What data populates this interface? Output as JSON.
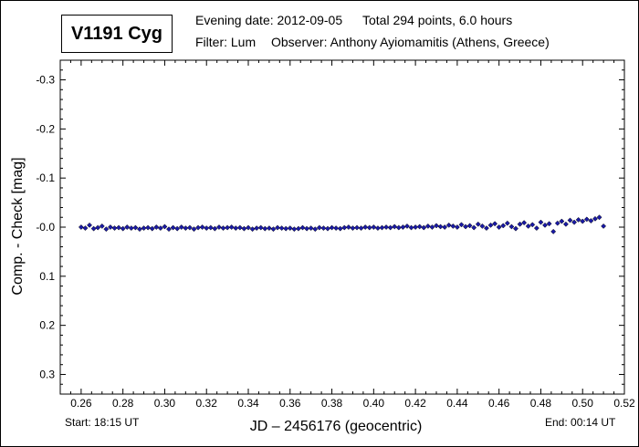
{
  "header": {
    "star_name": "V1191 Cyg",
    "evening_date": "Evening date: 2012-09-05",
    "total": "Total 294 points, 6.0 hours",
    "filter": "Filter: Lum",
    "observer": "Observer: Anthony Ayiomamitis (Athens, Greece)"
  },
  "footer": {
    "start": "Start: 18:15 UT",
    "end": "End: 00:14 UT"
  },
  "chart_data": {
    "type": "scatter",
    "title": "V1191 Cyg",
    "xlabel": "JD – 2456176  (geocentric)",
    "ylabel": "Comp. - Check [mag]",
    "xlim": [
      0.25,
      0.52
    ],
    "ylim": [
      -0.34,
      0.34
    ],
    "y_inverted": true,
    "x_ticks": [
      "0.26",
      "0.28",
      "0.30",
      "0.32",
      "0.34",
      "0.36",
      "0.38",
      "0.40",
      "0.42",
      "0.44",
      "0.46",
      "0.48",
      "0.50",
      "0.52"
    ],
    "y_ticks": [
      "-0.3",
      "-0.2",
      "-0.1",
      "-0.0",
      "0.1",
      "0.2",
      "0.3"
    ],
    "marker_color": "#1a1aa8",
    "series": [
      {
        "x": [
          0.26,
          0.262,
          0.264,
          0.266,
          0.268,
          0.27,
          0.272,
          0.274,
          0.276,
          0.278,
          0.28,
          0.282,
          0.284,
          0.286,
          0.288,
          0.29,
          0.292,
          0.294,
          0.296,
          0.298,
          0.3,
          0.302,
          0.304,
          0.306,
          0.308,
          0.31,
          0.312,
          0.314,
          0.316,
          0.318,
          0.32,
          0.322,
          0.324,
          0.326,
          0.328,
          0.33,
          0.332,
          0.334,
          0.336,
          0.338,
          0.34,
          0.342,
          0.344,
          0.346,
          0.348,
          0.35,
          0.352,
          0.354,
          0.356,
          0.358,
          0.36,
          0.362,
          0.364,
          0.366,
          0.368,
          0.37,
          0.372,
          0.374,
          0.376,
          0.378,
          0.38,
          0.382,
          0.384,
          0.386,
          0.388,
          0.39,
          0.392,
          0.394,
          0.396,
          0.398,
          0.4,
          0.402,
          0.404,
          0.406,
          0.408,
          0.41,
          0.412,
          0.414,
          0.416,
          0.418,
          0.42,
          0.422,
          0.424,
          0.426,
          0.428,
          0.43,
          0.432,
          0.434,
          0.436,
          0.438,
          0.44,
          0.442,
          0.444,
          0.446,
          0.448,
          0.45,
          0.452,
          0.454,
          0.456,
          0.458,
          0.46,
          0.462,
          0.464,
          0.466,
          0.468,
          0.47,
          0.472,
          0.474,
          0.476,
          0.478,
          0.48,
          0.482,
          0.484,
          0.486,
          0.488,
          0.49,
          0.492,
          0.494,
          0.496,
          0.498,
          0.5,
          0.502,
          0.504,
          0.506,
          0.508,
          0.51
        ],
        "y": [
          0.0,
          0.002,
          -0.004,
          0.003,
          0.001,
          -0.002,
          0.004,
          0.0,
          0.002,
          0.001,
          0.003,
          0.0,
          0.002,
          0.001,
          0.004,
          0.002,
          0.001,
          0.003,
          0.0,
          0.002,
          -0.001,
          0.004,
          0.001,
          0.003,
          0.0,
          0.002,
          0.001,
          0.004,
          0.001,
          0.0,
          0.002,
          0.001,
          0.003,
          0.0,
          0.002,
          0.001,
          0.0,
          0.002,
          0.001,
          0.003,
          0.001,
          0.004,
          0.002,
          0.001,
          0.003,
          0.002,
          0.004,
          0.001,
          0.002,
          0.003,
          0.002,
          0.004,
          0.003,
          0.001,
          0.003,
          0.002,
          0.004,
          0.001,
          0.002,
          0.003,
          0.001,
          0.002,
          0.003,
          0.001,
          0.0,
          0.002,
          0.001,
          0.002,
          0.0,
          0.001,
          0.0,
          0.002,
          0.001,
          0.0,
          0.001,
          -0.001,
          0.001,
          0.0,
          -0.002,
          0.001,
          0.0,
          -0.001,
          0.001,
          -0.002,
          0.0,
          -0.003,
          -0.001,
          0.0,
          -0.004,
          -0.002,
          0.0,
          -0.005,
          -0.001,
          -0.003,
          0.001,
          -0.006,
          -0.002,
          0.002,
          -0.004,
          -0.007,
          0.0,
          -0.003,
          -0.008,
          -0.001,
          0.003,
          -0.006,
          -0.009,
          -0.002,
          -0.005,
          0.002,
          -0.01,
          -0.004,
          -0.007,
          0.009,
          -0.008,
          -0.012,
          -0.006,
          -0.014,
          -0.01,
          -0.015,
          -0.012,
          -0.016,
          -0.013,
          -0.017,
          -0.02,
          -0.002
        ]
      }
    ]
  }
}
